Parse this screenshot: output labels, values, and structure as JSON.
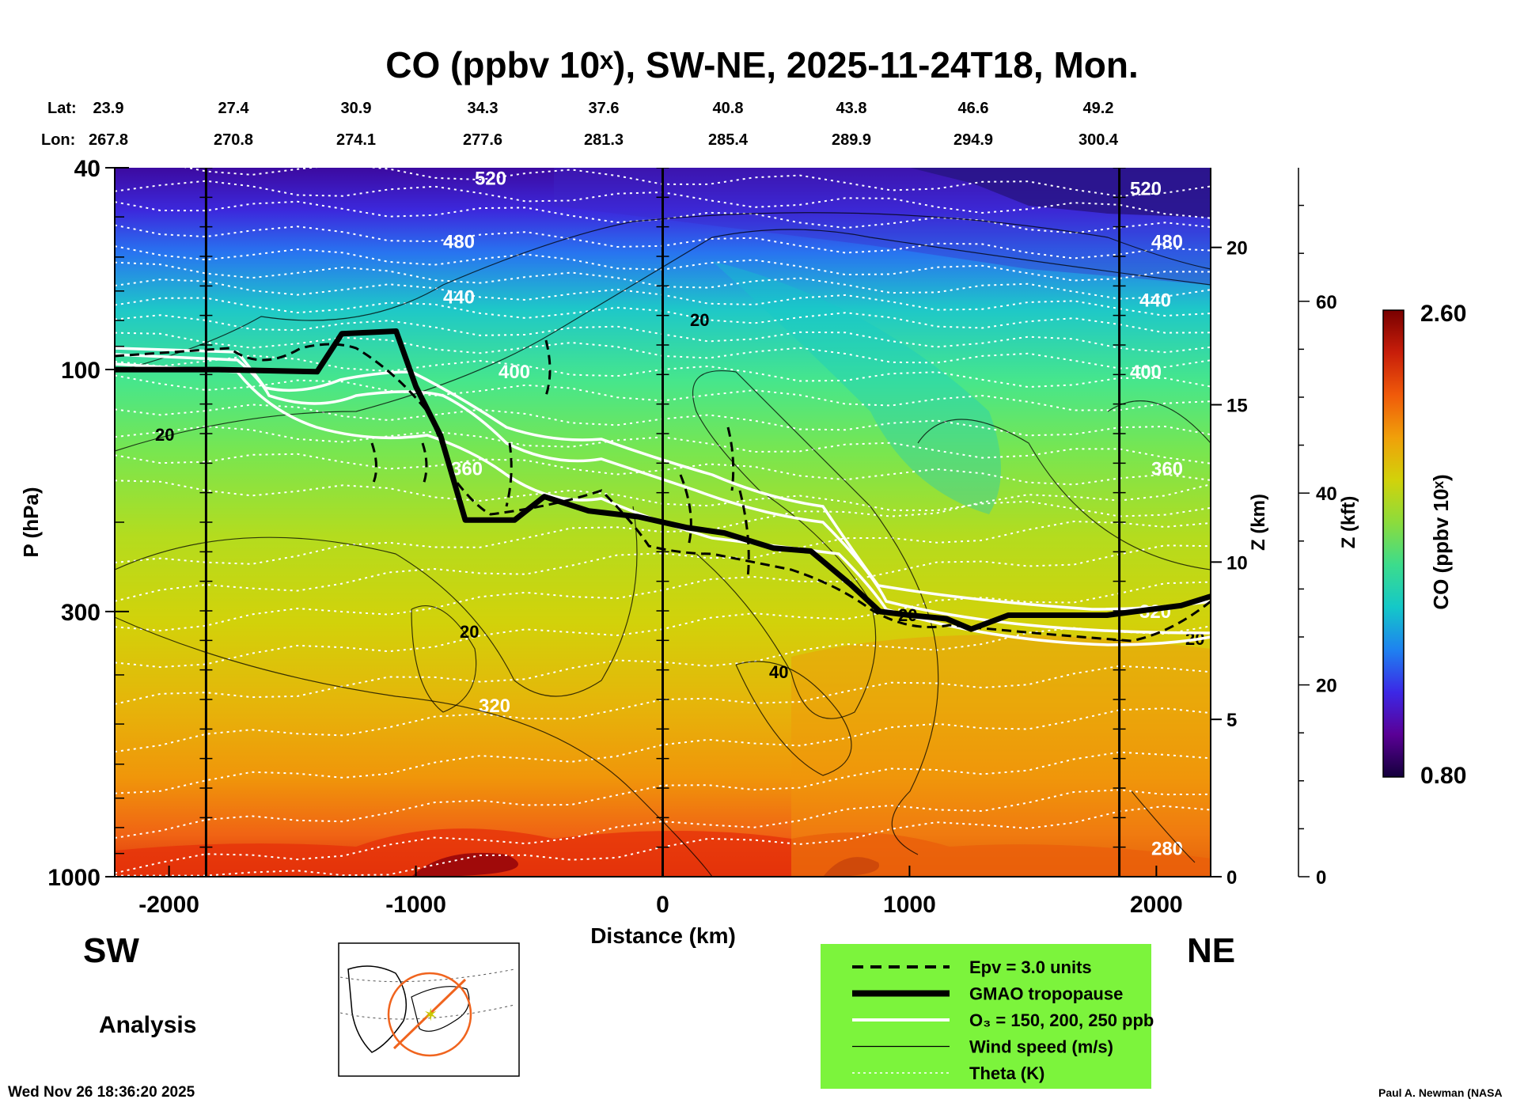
{
  "chart_data": {
    "type": "heatmap",
    "title": "CO (ppbv 10ˣ), SW-NE, 2025-11-24T18, Mon.",
    "xlabel": "Distance (km)",
    "ylabel": "P (hPa)",
    "y2label": "Z (km)",
    "y3label": "Z (kft)",
    "colorbar_label": "CO (ppbv 10ˣ)",
    "colorbar_range": [
      0.8,
      2.6
    ],
    "colorbar_min_label": "0.80",
    "colorbar_max_label": "2.60",
    "xlim": [
      -2220,
      2220
    ],
    "ylim_hpa": [
      1000,
      40
    ],
    "x_ticks": [
      -2000,
      -1000,
      0,
      1000,
      2000
    ],
    "x_tick_labels": [
      "-2000",
      "-1000",
      "0",
      "1000",
      "2000"
    ],
    "p_ticks": [
      40,
      100,
      300,
      1000
    ],
    "p_tick_labels": [
      "40",
      "100",
      "300",
      "1000"
    ],
    "zkm_ticks": [
      0,
      5,
      10,
      15,
      20
    ],
    "zkm_tick_labels": [
      "0",
      "5",
      "10",
      "15",
      "20"
    ],
    "zkft_ticks": [
      0,
      20,
      40,
      60
    ],
    "zkft_tick_labels": [
      "0",
      "20",
      "40",
      "60"
    ],
    "lat_label": "Lat:",
    "lon_label": "Lon:",
    "lat_values": [
      "23.9",
      "27.4",
      "30.9",
      "34.3",
      "37.6",
      "40.8",
      "43.8",
      "46.6",
      "49.2"
    ],
    "lon_values": [
      "267.8",
      "270.8",
      "274.1",
      "277.6",
      "281.3",
      "285.4",
      "289.9",
      "294.9",
      "300.4"
    ],
    "marker_lines_km": [
      -1850,
      0,
      1850
    ],
    "theta_levels": [
      {
        "label": "520",
        "p": 42
      },
      {
        "label": "480",
        "p": 56
      },
      {
        "label": "440",
        "p": 72
      },
      {
        "label": "400",
        "p": 101
      },
      {
        "label": "360",
        "p": 157
      },
      {
        "label": "320",
        "p": 460
      },
      {
        "label": "280",
        "p": 880
      }
    ],
    "wind_labels": [
      "20",
      "20",
      "20",
      "40",
      "20",
      "20"
    ],
    "tropopause_km_p": [
      [
        -2220,
        100
      ],
      [
        -1800,
        100
      ],
      [
        -1400,
        101
      ],
      [
        -1300,
        85
      ],
      [
        -1080,
        84
      ],
      [
        -1000,
        108
      ],
      [
        -900,
        135
      ],
      [
        -800,
        198
      ],
      [
        -600,
        198
      ],
      [
        -480,
        178
      ],
      [
        -300,
        190
      ],
      [
        -100,
        195
      ],
      [
        100,
        205
      ],
      [
        250,
        210
      ],
      [
        450,
        225
      ],
      [
        600,
        228
      ],
      [
        760,
        265
      ],
      [
        880,
        300
      ],
      [
        1000,
        305
      ],
      [
        1150,
        310
      ],
      [
        1250,
        325
      ],
      [
        1400,
        305
      ],
      [
        1800,
        305
      ],
      [
        2100,
        292
      ],
      [
        2220,
        280
      ]
    ]
  },
  "region_left": "SW",
  "region_right": "NE",
  "analysis_label": "Analysis",
  "timestamp": "Wed Nov 26 18:36:20 2025",
  "credit": "Paul A. Newman (NASA",
  "legend": {
    "items": [
      {
        "label": "Epv = 3.0 units",
        "style": "dashed"
      },
      {
        "label": "GMAO tropopause",
        "style": "thick"
      },
      {
        "label": "O₃ = 150, 200, 250 ppb",
        "style": "white"
      },
      {
        "label": "Wind speed (m/s)",
        "style": "thin"
      },
      {
        "label": "Theta (K)",
        "style": "dotted"
      }
    ],
    "background": "#7cf43c"
  },
  "colors": {
    "colorbar_stops": [
      "#14003c",
      "#5a0096",
      "#3c28e6",
      "#1e82f0",
      "#14c8c8",
      "#3cdc8c",
      "#8cdc3c",
      "#d2d20a",
      "#f0a00a",
      "#f05a0a",
      "#c81e0a",
      "#780000"
    ]
  }
}
